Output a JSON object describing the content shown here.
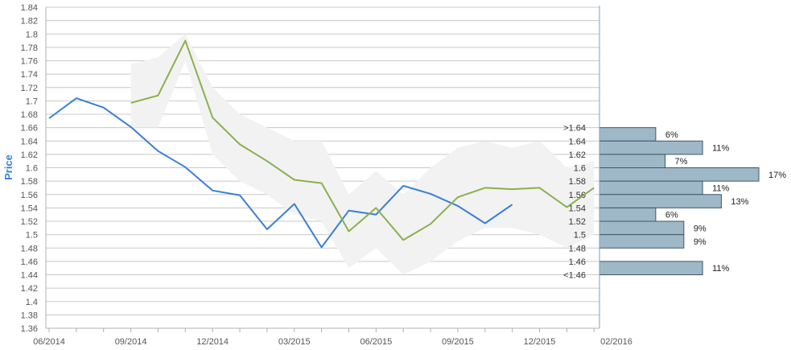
{
  "chart_data": {
    "type": "line",
    "ylabel": "Price",
    "ylim": [
      1.36,
      1.84
    ],
    "y_ticks": [
      "1.36",
      "1.38",
      "1.4",
      "1.42",
      "1.44",
      "1.46",
      "1.48",
      "1.5",
      "1.52",
      "1.54",
      "1.56",
      "1.58",
      "1.6",
      "1.62",
      "1.64",
      "1.66",
      "1.68",
      "1.7",
      "1.72",
      "1.74",
      "1.76",
      "1.78",
      "1.8",
      "1.82",
      "1.84"
    ],
    "x_ticks": [
      "06/2014",
      "09/2014",
      "12/2014",
      "03/2015",
      "06/2015",
      "09/2015",
      "12/2015",
      "02/2016"
    ],
    "grid": true,
    "series": [
      {
        "color": "#3a7fd5",
        "x": [
          "2014-06",
          "2014-07",
          "2014-08",
          "2014-09",
          "2014-10",
          "2014-11",
          "2014-12",
          "2015-01",
          "2015-02",
          "2015-03",
          "2015-04",
          "2015-05",
          "2015-06",
          "2015-07",
          "2015-08",
          "2015-09",
          "2015-10",
          "2015-11"
        ],
        "values": [
          1.674,
          1.704,
          1.69,
          1.661,
          1.625,
          1.601,
          1.566,
          1.559,
          1.508,
          1.546,
          1.481,
          1.536,
          1.53,
          1.573,
          1.561,
          1.543,
          1.517,
          1.545
        ]
      },
      {
        "color": "#8ab04e",
        "x": [
          "2014-09",
          "2014-10",
          "2014-11",
          "2014-12",
          "2015-01",
          "2015-02",
          "2015-03",
          "2015-04",
          "2015-05",
          "2015-06",
          "2015-07",
          "2015-08",
          "2015-09",
          "2015-10",
          "2015-11",
          "2015-12",
          "2016-01",
          "2016-02"
        ],
        "values": [
          1.697,
          1.708,
          1.79,
          1.675,
          1.635,
          1.61,
          1.582,
          1.577,
          1.505,
          1.54,
          1.492,
          1.516,
          1.556,
          1.57,
          1.568,
          1.57,
          1.541,
          1.57
        ]
      }
    ],
    "band": {
      "color": "#f2f2f2",
      "x": [
        "2014-09",
        "2014-10",
        "2014-11",
        "2014-12",
        "2015-01",
        "2015-02",
        "2015-03",
        "2015-04",
        "2015-05",
        "2015-06",
        "2015-07",
        "2015-08",
        "2015-09",
        "2015-10",
        "2015-11",
        "2015-12",
        "2016-01",
        "2016-02"
      ],
      "upper": [
        1.755,
        1.765,
        1.8,
        1.72,
        1.68,
        1.66,
        1.64,
        1.64,
        1.56,
        1.595,
        1.56,
        1.6,
        1.63,
        1.64,
        1.63,
        1.64,
        1.6,
        1.61
      ],
      "lower": [
        1.66,
        1.66,
        1.76,
        1.62,
        1.58,
        1.56,
        1.53,
        1.52,
        1.45,
        1.48,
        1.44,
        1.46,
        1.49,
        1.51,
        1.51,
        1.5,
        1.48,
        1.5
      ]
    },
    "distribution": {
      "color": "#9fb8c7",
      "bins": [
        {
          "label": ">1.64",
          "lo": 1.64,
          "hi": 1.66,
          "pct": 6,
          "text": "6%"
        },
        {
          "label": "1.64",
          "lo": 1.62,
          "hi": 1.64,
          "pct": 11,
          "text": "11%"
        },
        {
          "label": "1.62",
          "lo": 1.6,
          "hi": 1.62,
          "pct": 7,
          "text": "7%"
        },
        {
          "label": "1.6",
          "lo": 1.58,
          "hi": 1.6,
          "pct": 17,
          "text": "17%"
        },
        {
          "label": "1.58",
          "lo": 1.56,
          "hi": 1.58,
          "pct": 11,
          "text": "11%"
        },
        {
          "label": "1.56",
          "lo": 1.54,
          "hi": 1.56,
          "pct": 13,
          "text": "13%"
        },
        {
          "label": "1.54",
          "lo": 1.52,
          "hi": 1.54,
          "pct": 6,
          "text": "6%"
        },
        {
          "label": "1.52",
          "lo": 1.5,
          "hi": 1.52,
          "pct": 9,
          "text": "9%"
        },
        {
          "label": "1.5",
          "lo": 1.48,
          "hi": 1.5,
          "pct": 9,
          "text": "9%"
        },
        {
          "label": "1.48",
          "lo": 1.46,
          "hi": 1.48,
          "pct": 0,
          "text": ""
        },
        {
          "label": "1.46",
          "lo": 1.44,
          "hi": 1.46,
          "pct": 11,
          "text": "11%"
        },
        {
          "label": "<1.46",
          "lo": 1.44,
          "hi": 1.44,
          "pct": 0,
          "text": ""
        }
      ]
    }
  }
}
